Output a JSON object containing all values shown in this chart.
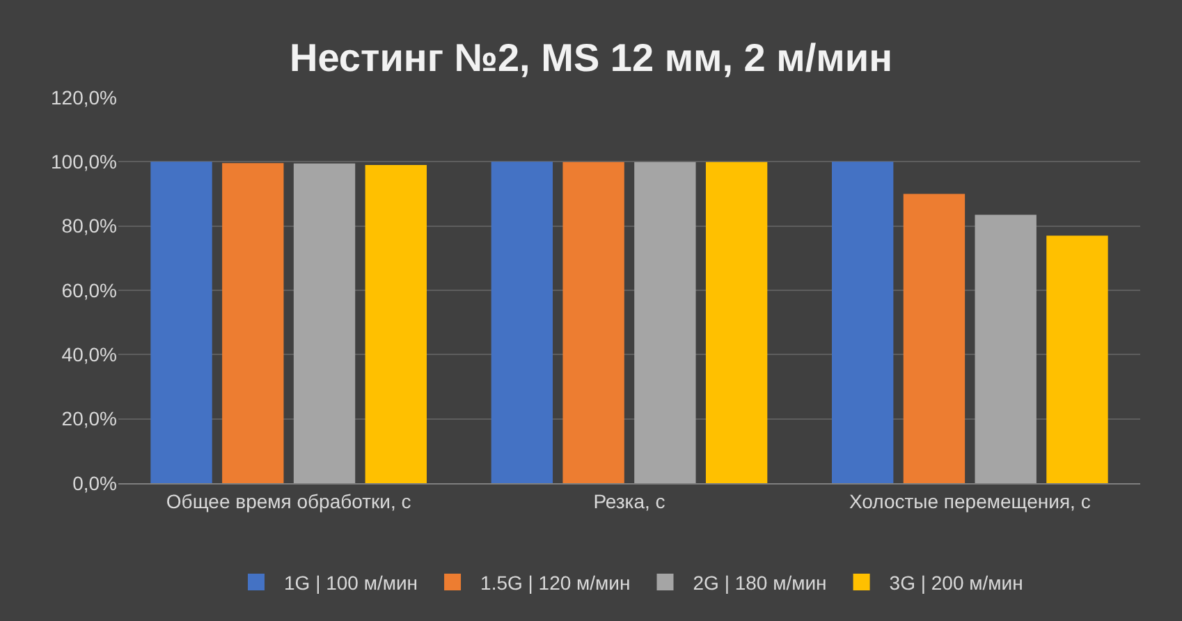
{
  "chart_data": {
    "type": "bar",
    "title": "Нестинг №2, MS 12 мм, 2 м/мин",
    "categories": [
      "Общее время обработки, с",
      "Резка, с",
      "Холостые перемещения, с"
    ],
    "series": [
      {
        "name": "1G | 100 м/мин",
        "color": "#4472c4",
        "values": [
          100,
          100,
          100
        ]
      },
      {
        "name": "1.5G | 120 м/мин",
        "color": "#ed7d31",
        "values": [
          99.6,
          99.9,
          90
        ]
      },
      {
        "name": "2G | 180 м/мин",
        "color": "#a5a5a5",
        "values": [
          99.5,
          99.9,
          83.5
        ]
      },
      {
        "name": "3G | 200 м/мин",
        "color": "#ffc000",
        "values": [
          99,
          99.9,
          77
        ]
      }
    ],
    "ylim": [
      0,
      120
    ],
    "yticks": [
      {
        "value": 0,
        "label": "0,0%"
      },
      {
        "value": 20,
        "label": "20,0%"
      },
      {
        "value": 40,
        "label": "40,0%"
      },
      {
        "value": 60,
        "label": "60,0%"
      },
      {
        "value": 80,
        "label": "80,0%"
      },
      {
        "value": 100,
        "label": "100,0%"
      },
      {
        "value": 120,
        "label": "120,0%"
      }
    ],
    "grid": "y",
    "legend": "bottom"
  }
}
